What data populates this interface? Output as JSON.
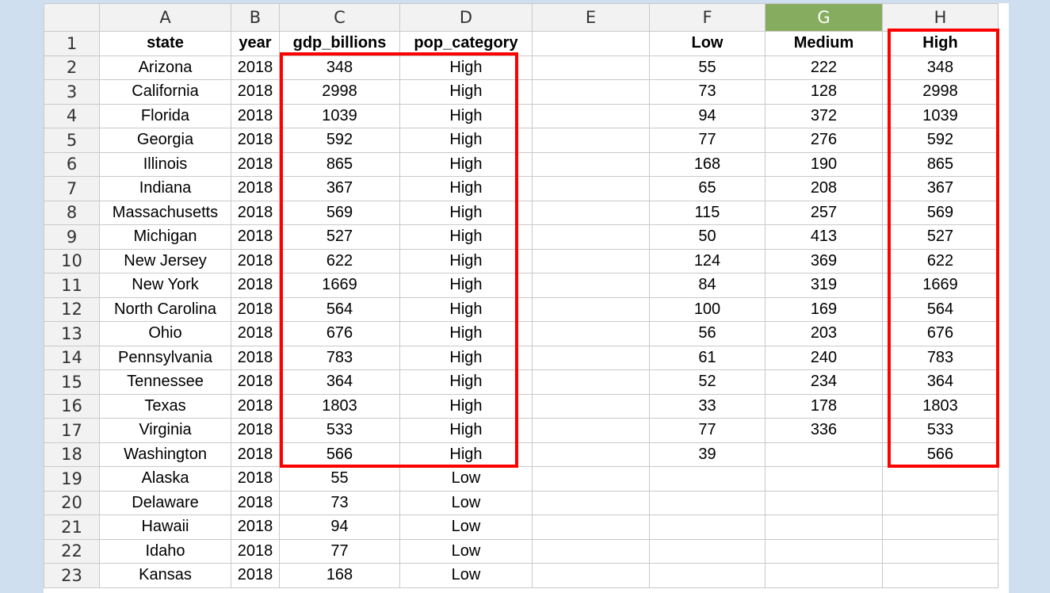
{
  "columns": [
    "",
    "A",
    "B",
    "C",
    "D",
    "E",
    "F",
    "G",
    "H"
  ],
  "active_column": "G",
  "rows": [
    {
      "n": "1",
      "cells": [
        "state",
        "year",
        "gdp_billions",
        "pop_category",
        "",
        "Low",
        "Medium",
        "High"
      ]
    },
    {
      "n": "2",
      "cells": [
        "Arizona",
        "2018",
        "348",
        "High",
        "",
        "55",
        "222",
        "348"
      ]
    },
    {
      "n": "3",
      "cells": [
        "California",
        "2018",
        "2998",
        "High",
        "",
        "73",
        "128",
        "2998"
      ]
    },
    {
      "n": "4",
      "cells": [
        "Florida",
        "2018",
        "1039",
        "High",
        "",
        "94",
        "372",
        "1039"
      ]
    },
    {
      "n": "5",
      "cells": [
        "Georgia",
        "2018",
        "592",
        "High",
        "",
        "77",
        "276",
        "592"
      ]
    },
    {
      "n": "6",
      "cells": [
        "Illinois",
        "2018",
        "865",
        "High",
        "",
        "168",
        "190",
        "865"
      ]
    },
    {
      "n": "7",
      "cells": [
        "Indiana",
        "2018",
        "367",
        "High",
        "",
        "65",
        "208",
        "367"
      ]
    },
    {
      "n": "8",
      "cells": [
        "Massachusetts",
        "2018",
        "569",
        "High",
        "",
        "115",
        "257",
        "569"
      ]
    },
    {
      "n": "9",
      "cells": [
        "Michigan",
        "2018",
        "527",
        "High",
        "",
        "50",
        "413",
        "527"
      ]
    },
    {
      "n": "10",
      "cells": [
        "New Jersey",
        "2018",
        "622",
        "High",
        "",
        "124",
        "369",
        "622"
      ]
    },
    {
      "n": "11",
      "cells": [
        "New York",
        "2018",
        "1669",
        "High",
        "",
        "84",
        "319",
        "1669"
      ]
    },
    {
      "n": "12",
      "cells": [
        "North Carolina",
        "2018",
        "564",
        "High",
        "",
        "100",
        "169",
        "564"
      ]
    },
    {
      "n": "13",
      "cells": [
        "Ohio",
        "2018",
        "676",
        "High",
        "",
        "56",
        "203",
        "676"
      ]
    },
    {
      "n": "14",
      "cells": [
        "Pennsylvania",
        "2018",
        "783",
        "High",
        "",
        "61",
        "240",
        "783"
      ]
    },
    {
      "n": "15",
      "cells": [
        "Tennessee",
        "2018",
        "364",
        "High",
        "",
        "52",
        "234",
        "364"
      ]
    },
    {
      "n": "16",
      "cells": [
        "Texas",
        "2018",
        "1803",
        "High",
        "",
        "33",
        "178",
        "1803"
      ]
    },
    {
      "n": "17",
      "cells": [
        "Virginia",
        "2018",
        "533",
        "High",
        "",
        "77",
        "336",
        "533"
      ]
    },
    {
      "n": "18",
      "cells": [
        "Washington",
        "2018",
        "566",
        "High",
        "",
        "39",
        "",
        "566"
      ]
    },
    {
      "n": "19",
      "cells": [
        "Alaska",
        "2018",
        "55",
        "Low",
        "",
        "",
        "",
        ""
      ]
    },
    {
      "n": "20",
      "cells": [
        "Delaware",
        "2018",
        "73",
        "Low",
        "",
        "",
        "",
        ""
      ]
    },
    {
      "n": "21",
      "cells": [
        "Hawaii",
        "2018",
        "94",
        "Low",
        "",
        "",
        "",
        ""
      ]
    },
    {
      "n": "22",
      "cells": [
        "Idaho",
        "2018",
        "77",
        "Low",
        "",
        "",
        "",
        ""
      ]
    },
    {
      "n": "23",
      "cells": [
        "Kansas",
        "2018",
        "168",
        "Low",
        "",
        "",
        "",
        ""
      ]
    }
  ],
  "highlight_color": "#ff0000"
}
